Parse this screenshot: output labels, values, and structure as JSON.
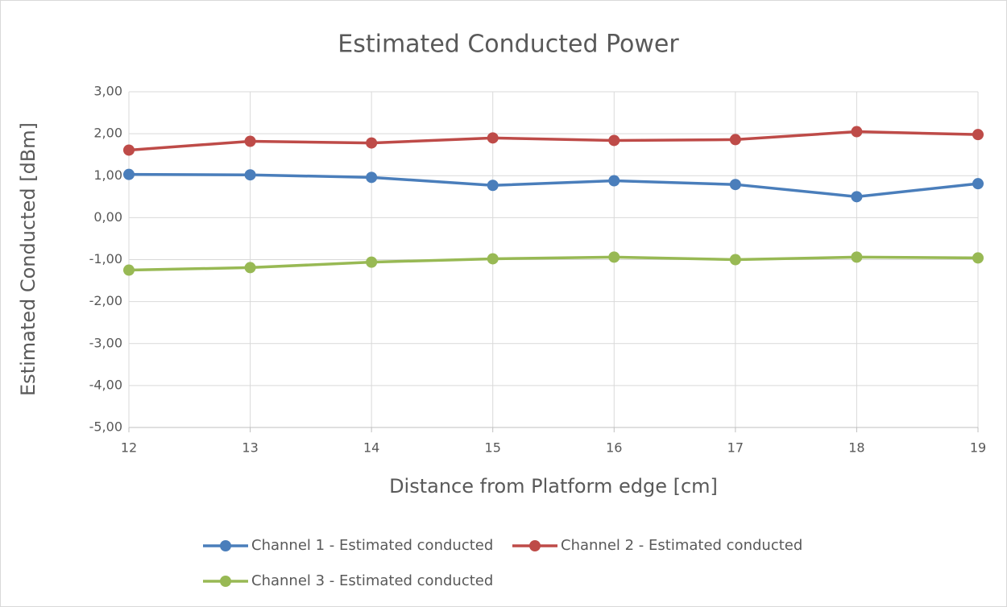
{
  "chart_data": {
    "type": "line",
    "title": "Estimated Conducted Power",
    "x_label": "Distance from Platform edge [cm]",
    "y_label": "Estimated Conducted [dBm]",
    "x": [
      12,
      13,
      14,
      15,
      16,
      17,
      18,
      19
    ],
    "series": [
      {
        "name": "Channel 1 - Estimated conducted",
        "color": "#4a7ebb",
        "values": [
          1.03,
          1.02,
          0.96,
          0.77,
          0.88,
          0.79,
          0.5,
          0.81
        ]
      },
      {
        "name": "Channel 2 - Estimated conducted",
        "color": "#be4b48",
        "values": [
          1.61,
          1.82,
          1.78,
          1.9,
          1.84,
          1.86,
          2.05,
          1.98
        ]
      },
      {
        "name": "Channel 3 - Estimated conducted",
        "color": "#98b954",
        "values": [
          -1.25,
          -1.19,
          -1.06,
          -0.98,
          -0.94,
          -1.0,
          -0.94,
          -0.96
        ]
      }
    ],
    "xlim": [
      12,
      19
    ],
    "xticks": [
      12,
      13,
      14,
      15,
      16,
      17,
      18,
      19
    ],
    "ylim": [
      -5,
      3
    ],
    "yticks": [
      {
        "value": -5,
        "label": "-5,00"
      },
      {
        "value": -4,
        "label": "-4,00"
      },
      {
        "value": -3,
        "label": "-3,00"
      },
      {
        "value": -2,
        "label": "-2,00"
      },
      {
        "value": -1,
        "label": "-1,00"
      },
      {
        "value": 0,
        "label": "0,00"
      },
      {
        "value": 1,
        "label": "1,00"
      },
      {
        "value": 2,
        "label": "2,00"
      },
      {
        "value": 3,
        "label": "3,00"
      }
    ],
    "grid": true,
    "legend": "bottom"
  }
}
